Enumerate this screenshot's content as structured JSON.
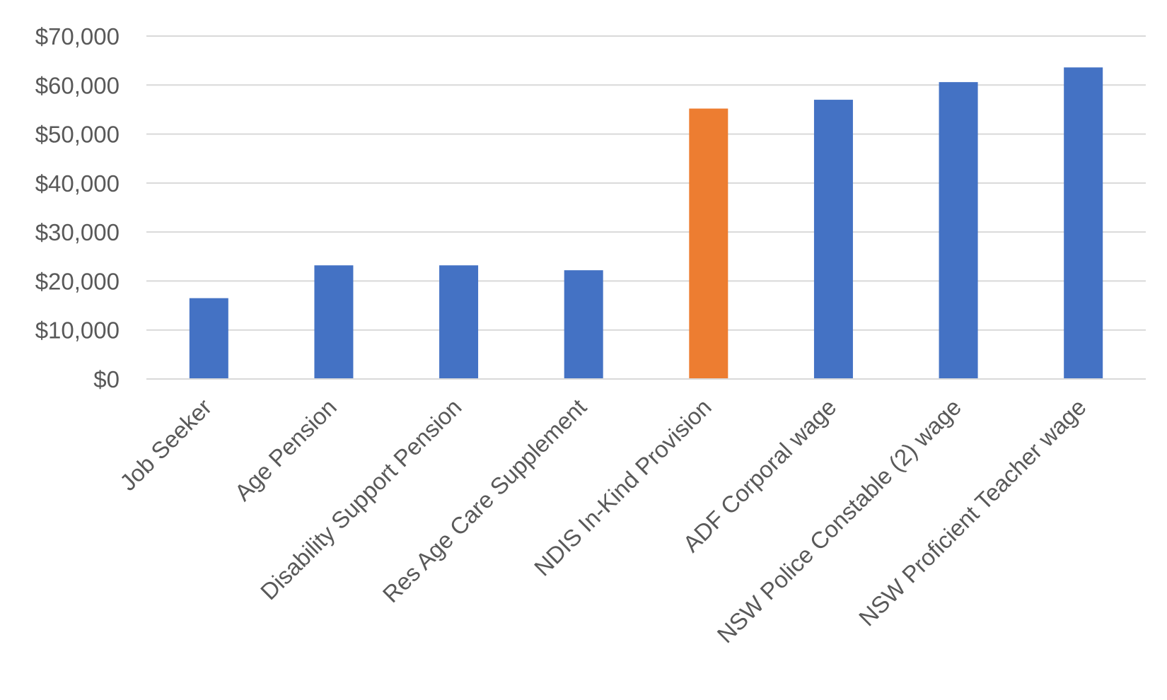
{
  "chart_data": {
    "type": "bar",
    "title": "",
    "xlabel": "",
    "ylabel": "",
    "ylim": [
      0,
      70000
    ],
    "y_ticks": [
      0,
      10000,
      20000,
      30000,
      40000,
      50000,
      60000,
      70000
    ],
    "y_tick_labels": [
      "$0",
      "$10,000",
      "$20,000",
      "$30,000",
      "$40,000",
      "$50,000",
      "$60,000",
      "$70,000"
    ],
    "grid": true,
    "legend": "none",
    "categories": [
      "Job Seeker",
      "Age Pension",
      "Disability Support Pension",
      "Res Age Care Supplement",
      "NDIS In-Kind Provision",
      "ADF Corporal wage",
      "NSW Police Constable (2) wage",
      "NSW Proficient Teacher wage"
    ],
    "values": [
      16500,
      23200,
      23200,
      22200,
      55200,
      57000,
      60600,
      63600
    ],
    "colors": [
      "#4472c4",
      "#4472c4",
      "#4472c4",
      "#4472c4",
      "#ed7d31",
      "#4472c4",
      "#4472c4",
      "#4472c4"
    ]
  }
}
